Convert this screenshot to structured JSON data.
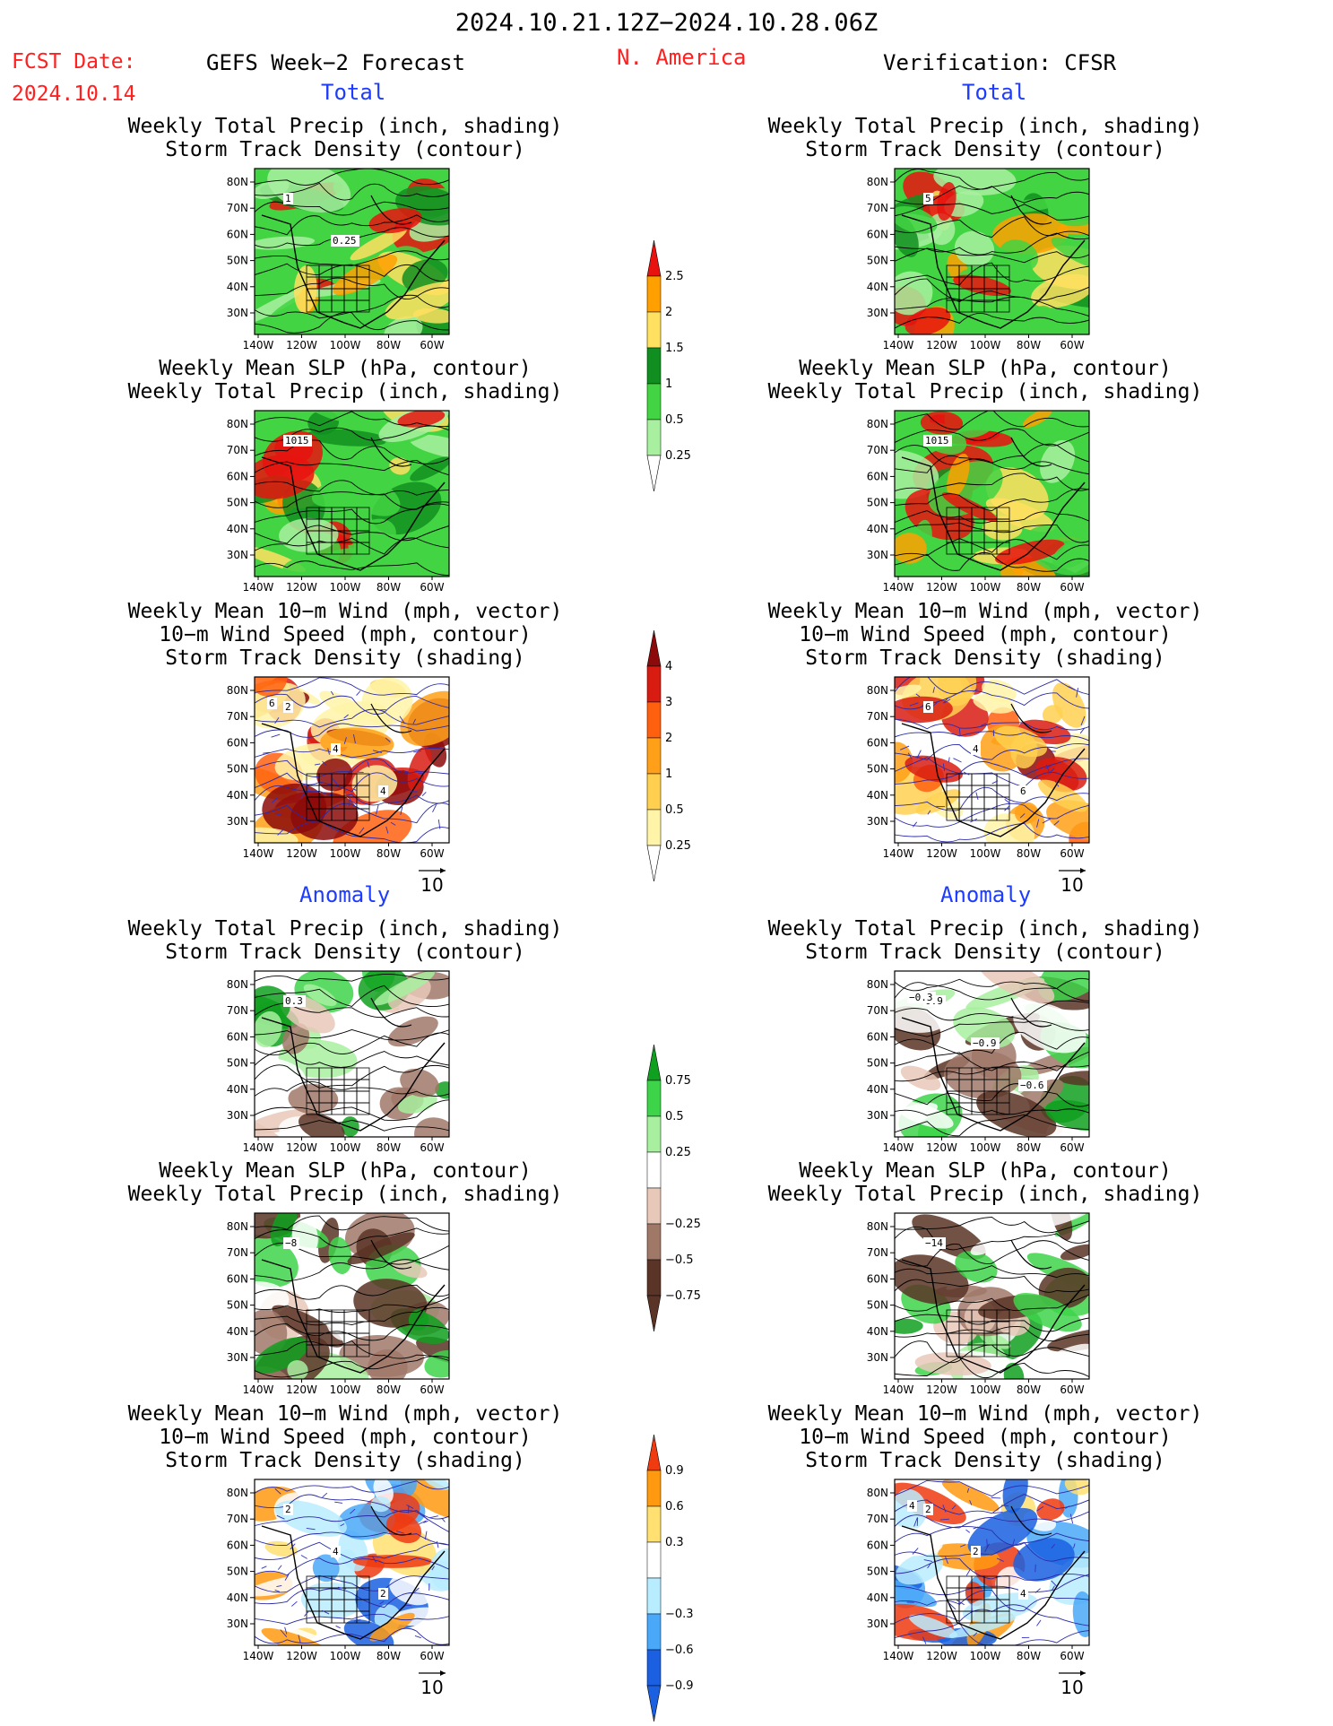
{
  "header": {
    "date_range": "2024.10.21.12Z−2024.10.28.06Z",
    "fcst_label": "FCST Date:",
    "fcst_date": "2024.10.14",
    "product": "GEFS Week−2 Forecast",
    "region": "N. America",
    "verification": "Verification: CFSR"
  },
  "sections": {
    "total": "Total",
    "anomaly": "Anomaly"
  },
  "axes": {
    "lat_ticks": [
      "80N",
      "70N",
      "60N",
      "50N",
      "40N",
      "30N"
    ],
    "lon_ticks": [
      "140W",
      "120W",
      "100W",
      "80W",
      "60W"
    ]
  },
  "vector_ref": "10",
  "colors": {
    "title_red": "#ff2020",
    "section_blue": "#1e3cff"
  },
  "panels": [
    {
      "title": [
        "Weekly Total Precip (inch, shading)",
        "Storm Track Density (contour)"
      ],
      "scheme": "precip",
      "column": "forecast",
      "labels": [
        "1",
        "0.25"
      ]
    },
    {
      "title": [
        "Weekly Total Precip (inch, shading)",
        "Storm Track Density (contour)"
      ],
      "scheme": "precip",
      "column": "verification",
      "labels": [
        "5"
      ]
    },
    {
      "title": [
        "Weekly Mean SLP (hPa, contour)",
        "Weekly Total Precip (inch, shading)"
      ],
      "scheme": "precip",
      "column": "forecast",
      "labels": [
        "1015"
      ]
    },
    {
      "title": [
        "Weekly Mean SLP (hPa, contour)",
        "Weekly Total Precip (inch, shading)"
      ],
      "scheme": "precip",
      "column": "verification",
      "labels": [
        "1015"
      ]
    },
    {
      "title": [
        "Weekly Mean 10−m Wind (mph, vector)",
        "10−m Wind Speed (mph, contour)",
        "Storm Track Density (shading)"
      ],
      "scheme": "storm",
      "column": "forecast",
      "labels": [
        "2",
        "4",
        "4",
        "6"
      ]
    },
    {
      "title": [
        "Weekly Mean 10−m Wind (mph, vector)",
        "10−m Wind Speed (mph, contour)",
        "Storm Track Density (shading)"
      ],
      "scheme": "storm",
      "column": "verification",
      "labels": [
        "6",
        "4",
        "6"
      ]
    },
    {
      "title": [
        "Weekly Total Precip (inch, shading)",
        "Storm Track Density (contour)"
      ],
      "scheme": "precip_anom",
      "column": "forecast",
      "labels": [
        "0.3"
      ]
    },
    {
      "title": [
        "Weekly Total Precip (inch, shading)",
        "Storm Track Density (contour)"
      ],
      "scheme": "precip_anom",
      "column": "verification",
      "labels": [
        "0.9",
        "−0.9",
        "−0.6",
        "−0.3"
      ]
    },
    {
      "title": [
        "Weekly Mean SLP (hPa, contour)",
        "Weekly Total Precip (inch, shading)"
      ],
      "scheme": "precip_anom",
      "column": "forecast",
      "labels": [
        "−8"
      ]
    },
    {
      "title": [
        "Weekly Mean SLP (hPa, contour)",
        "Weekly Total Precip (inch, shading)"
      ],
      "scheme": "precip_anom",
      "column": "verification",
      "labels": [
        "−14"
      ]
    },
    {
      "title": [
        "Weekly Mean 10−m Wind (mph, vector)",
        "10−m Wind Speed (mph, contour)",
        "Storm Track Density (shading)"
      ],
      "scheme": "storm_anom",
      "column": "forecast",
      "labels": [
        "2",
        "4",
        "2"
      ]
    },
    {
      "title": [
        "Weekly Mean 10−m Wind (mph, vector)",
        "10−m Wind Speed (mph, contour)",
        "Storm Track Density (shading)"
      ],
      "scheme": "storm_anom",
      "column": "verification",
      "labels": [
        "2",
        "2",
        "4",
        "4"
      ]
    }
  ],
  "colorbars": [
    {
      "labels": [
        "2.5",
        "2",
        "1.5",
        "1",
        "0.5",
        "0.25"
      ],
      "colors": [
        "#e8130f",
        "#ffa000",
        "#ffe060",
        "#108f20",
        "#42d442",
        "#a8f0a0"
      ]
    },
    {
      "labels": [
        "4",
        "3",
        "2",
        "1",
        "0.5",
        "0.25"
      ],
      "colors": [
        "#8c0a0a",
        "#d81c12",
        "#ff6010",
        "#ffa018",
        "#ffd050",
        "#fff4a8"
      ]
    },
    {
      "labels": [
        "0.75",
        "0.5",
        "0.25",
        "−0.25",
        "−0.5",
        "−0.75"
      ],
      "colors": [
        "#10a020",
        "#3ed44a",
        "#a8f0a0",
        "#ffffff",
        "#e8c8b8",
        "#a07868",
        "#5a3426"
      ]
    },
    {
      "labels": [
        "0.9",
        "0.6",
        "0.3",
        "−0.3",
        "−0.6",
        "−0.9"
      ],
      "colors": [
        "#f03a10",
        "#ff9a10",
        "#ffe070",
        "#ffffff",
        "#b8ecff",
        "#4aa8f8",
        "#1a60e0"
      ]
    }
  ]
}
